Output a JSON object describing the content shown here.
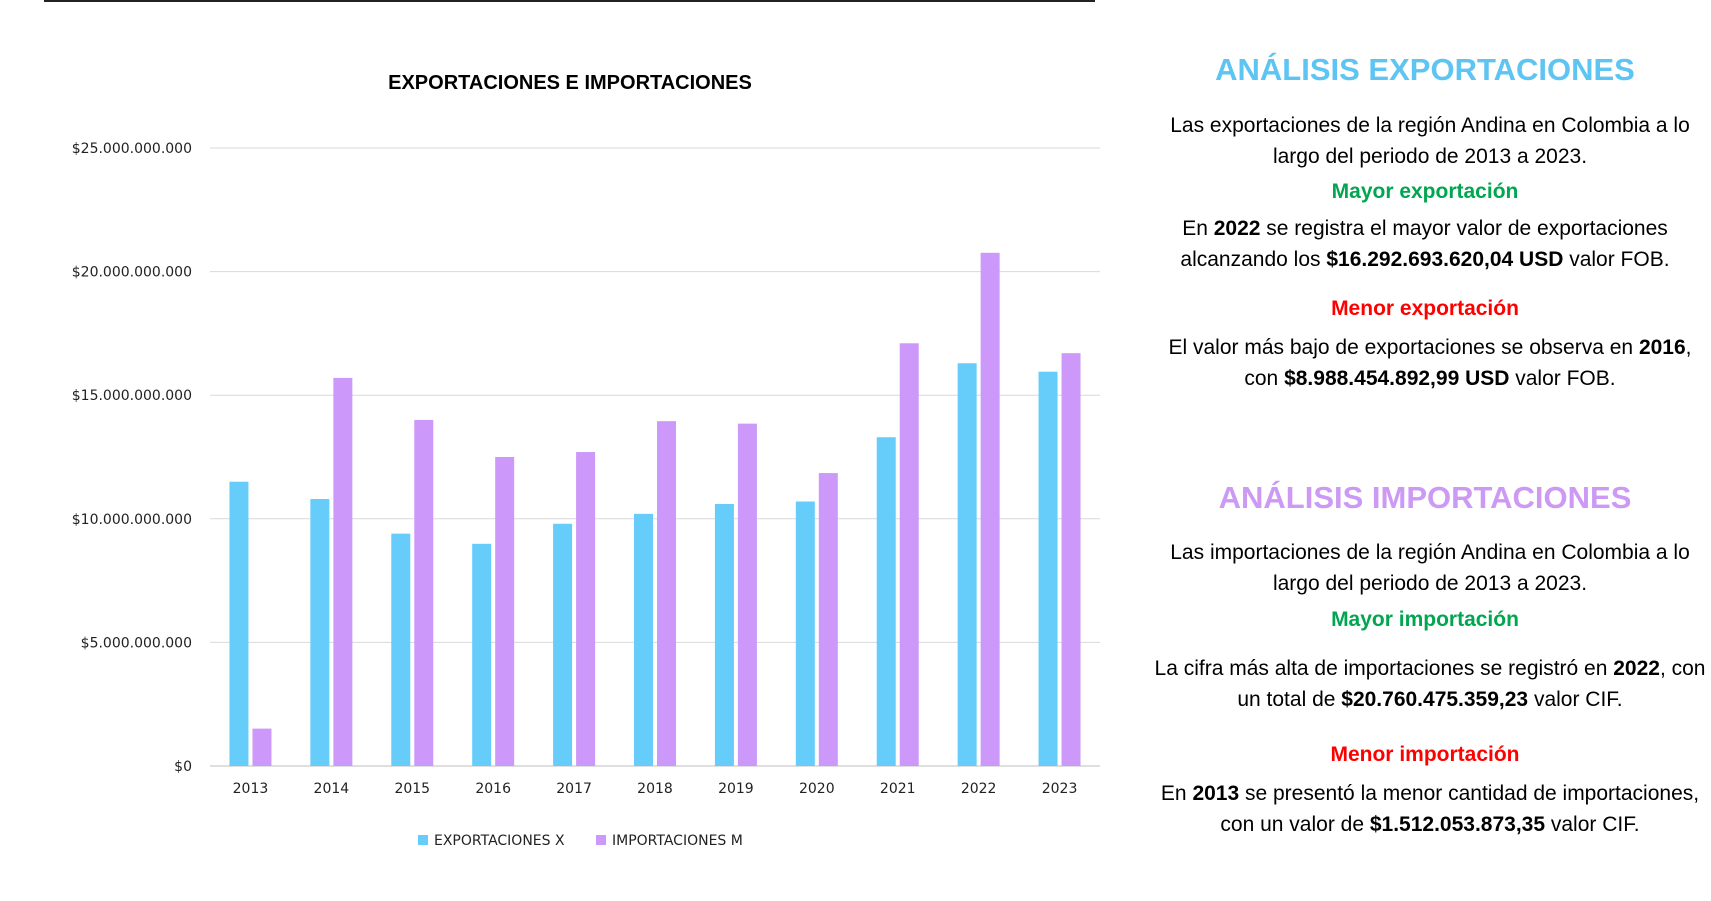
{
  "colors": {
    "exports": "#66ccfa",
    "imports": "#cc99fa",
    "export_title": "#5ec4f2",
    "import_title": "#cc99f5",
    "green": "#00a650",
    "red": "#ff0000"
  },
  "chart_data": {
    "type": "bar",
    "title": "EXPORTACIONES  E IMPORTACIONES",
    "categories": [
      "2013",
      "2014",
      "2015",
      "2016",
      "2017",
      "2018",
      "2019",
      "2020",
      "2021",
      "2022",
      "2023"
    ],
    "series": [
      {
        "name": "EXPORTACIONES X",
        "values": [
          11500000000,
          10800000000,
          9400000000,
          8988454892.99,
          9800000000,
          10200000000,
          10600000000,
          10700000000,
          13300000000,
          16292693620.04,
          15950000000
        ]
      },
      {
        "name": "IMPORTACIONES M",
        "values": [
          1512053873.35,
          15700000000,
          14000000000,
          12500000000,
          12700000000,
          13950000000,
          13850000000,
          11850000000,
          17100000000,
          20760475359.23,
          16700000000
        ]
      }
    ],
    "ylim": [
      0,
      25000000000
    ],
    "yticks": [
      0,
      5000000000,
      10000000000,
      15000000000,
      20000000000,
      25000000000
    ],
    "ytick_labels": [
      "$0",
      "$5.000.000.000",
      "$10.000.000.000",
      "$15.000.000.000",
      "$20.000.000.000",
      "$25.000.000.000"
    ],
    "legend": "bottom",
    "grid": true
  },
  "exports_panel": {
    "title": "ANÁLISIS EXPORTACIONES",
    "intro": "Las exportaciones de la región Andina en Colombia a lo largo del periodo de 2013 a 2023.",
    "max_heading": "Mayor exportación",
    "max_pre": "En ",
    "max_year": "2022",
    "max_mid": " se registra el mayor valor de exportaciones alcanzando los ",
    "max_value": "$16.292.693.620,04 USD",
    "max_post": " valor FOB.",
    "min_heading": "Menor exportación",
    "min_pre": "El valor más bajo de exportaciones se observa en ",
    "min_year": "2016",
    "min_mid": ", con ",
    "min_value": "$8.988.454.892,99 USD",
    "min_post": " valor FOB."
  },
  "imports_panel": {
    "title": "ANÁLISIS IMPORTACIONES",
    "intro": "Las importaciones de la región Andina en Colombia a lo largo del periodo de 2013 a 2023.",
    "max_heading": "Mayor importación",
    "max_pre": "La cifra más alta de importaciones se registró en ",
    "max_year": "2022",
    "max_mid": ", con un total de ",
    "max_value": "$20.760.475.359,23",
    "max_post": " valor CIF.",
    "min_heading": "Menor importación",
    "min_pre": "En ",
    "min_year": "2013",
    "min_mid": " se presentó la menor cantidad de importaciones, con un valor de ",
    "min_value": "$1.512.053.873,35",
    "min_post": " valor CIF."
  }
}
